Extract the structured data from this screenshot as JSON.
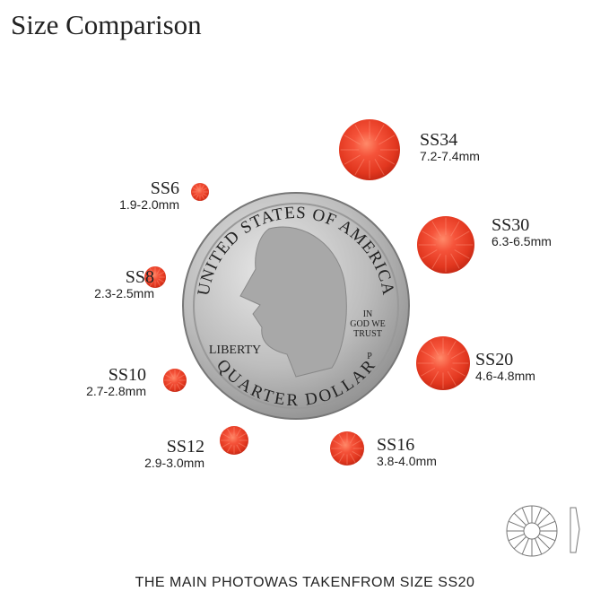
{
  "title": "Size Comparison",
  "stones": [
    {
      "name": "SS34",
      "size": "7.2-7.4mm"
    },
    {
      "name": "SS30",
      "size": "6.3-6.5mm"
    },
    {
      "name": "SS20",
      "size": "4.6-4.8mm"
    },
    {
      "name": "SS16",
      "size": "3.8-4.0mm"
    },
    {
      "name": "SS12",
      "size": "2.9-3.0mm"
    },
    {
      "name": "SS10",
      "size": "2.7-2.8mm"
    },
    {
      "name": "SS8",
      "size": "2.3-2.5mm"
    },
    {
      "name": "SS6",
      "size": "1.9-2.0mm"
    }
  ],
  "coin": {
    "top_text": "UNITED STATES OF AMERICA",
    "bottom_text": "QUARTER DOLLAR",
    "liberty": "LIBERTY",
    "motto": [
      "IN",
      "GOD WE",
      "TRUST"
    ],
    "mint": "P"
  },
  "footer": "THE MAIN PHOTOWAS TAKENFROM SIZE SS20"
}
